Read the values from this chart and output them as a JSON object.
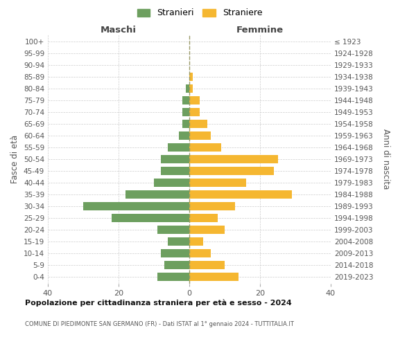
{
  "age_groups": [
    "0-4",
    "5-9",
    "10-14",
    "15-19",
    "20-24",
    "25-29",
    "30-34",
    "35-39",
    "40-44",
    "45-49",
    "50-54",
    "55-59",
    "60-64",
    "65-69",
    "70-74",
    "75-79",
    "80-84",
    "85-89",
    "90-94",
    "95-99",
    "100+"
  ],
  "birth_years": [
    "2019-2023",
    "2014-2018",
    "2009-2013",
    "2004-2008",
    "1999-2003",
    "1994-1998",
    "1989-1993",
    "1984-1988",
    "1979-1983",
    "1974-1978",
    "1969-1973",
    "1964-1968",
    "1959-1963",
    "1954-1958",
    "1949-1953",
    "1944-1948",
    "1939-1943",
    "1934-1938",
    "1929-1933",
    "1924-1928",
    "≤ 1923"
  ],
  "maschi": [
    9,
    7,
    8,
    6,
    9,
    22,
    30,
    18,
    10,
    8,
    8,
    6,
    3,
    2,
    2,
    2,
    1,
    0,
    0,
    0,
    0
  ],
  "femmine": [
    14,
    10,
    6,
    4,
    10,
    8,
    13,
    29,
    16,
    24,
    25,
    9,
    6,
    5,
    3,
    3,
    1,
    1,
    0,
    0,
    0
  ],
  "maschi_color": "#6d9f5f",
  "femmine_color": "#f5b731",
  "title1": "Popolazione per cittadinanza straniera per età e sesso - 2024",
  "title2": "COMUNE DI PIEDIMONTE SAN GERMANO (FR) - Dati ISTAT al 1° gennaio 2024 - TUTTITALIA.IT",
  "legend_maschi": "Stranieri",
  "legend_femmine": "Straniere",
  "xlabel_left": "Maschi",
  "xlabel_right": "Femmine",
  "ylabel_left": "Fasce di età",
  "ylabel_right": "Anni di nascita",
  "xlim": 40,
  "background_color": "#ffffff",
  "grid_color": "#cccccc"
}
